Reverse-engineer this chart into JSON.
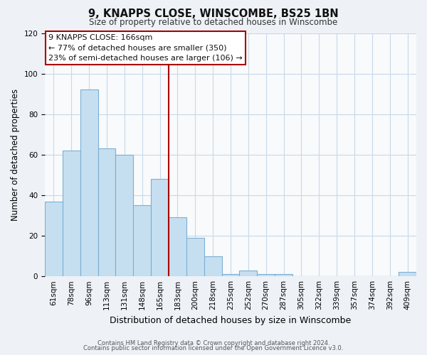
{
  "title": "9, KNAPPS CLOSE, WINSCOMBE, BS25 1BN",
  "subtitle": "Size of property relative to detached houses in Winscombe",
  "xlabel": "Distribution of detached houses by size in Winscombe",
  "ylabel": "Number of detached properties",
  "bar_labels": [
    "61sqm",
    "78sqm",
    "96sqm",
    "113sqm",
    "131sqm",
    "148sqm",
    "165sqm",
    "183sqm",
    "200sqm",
    "218sqm",
    "235sqm",
    "252sqm",
    "270sqm",
    "287sqm",
    "305sqm",
    "322sqm",
    "339sqm",
    "357sqm",
    "374sqm",
    "392sqm",
    "409sqm"
  ],
  "bar_values": [
    37,
    62,
    92,
    63,
    60,
    35,
    48,
    29,
    19,
    10,
    1,
    3,
    1,
    1,
    0,
    0,
    0,
    0,
    0,
    0,
    2
  ],
  "bar_color": "#c6dff0",
  "bar_edge_color": "#7bafd4",
  "vline_index": 6,
  "vline_color": "#aa0000",
  "ylim": [
    0,
    120
  ],
  "yticks": [
    0,
    20,
    40,
    60,
    80,
    100,
    120
  ],
  "annotation_title": "9 KNAPPS CLOSE: 166sqm",
  "annotation_line1": "← 77% of detached houses are smaller (350)",
  "annotation_line2": "23% of semi-detached houses are larger (106) →",
  "annotation_box_facecolor": "#ffffff",
  "annotation_box_edgecolor": "#aa0000",
  "footer1": "Contains HM Land Registry data © Crown copyright and database right 2024.",
  "footer2": "Contains public sector information licensed under the Open Government Licence v3.0.",
  "fig_facecolor": "#eef2f7",
  "plot_facecolor": "#f8fafc",
  "grid_color": "#c8d8e8",
  "title_fontsize": 10.5,
  "subtitle_fontsize": 8.5,
  "ylabel_fontsize": 8.5,
  "xlabel_fontsize": 9,
  "tick_fontsize": 7.5,
  "ann_fontsize": 8,
  "footer_fontsize": 6.0
}
